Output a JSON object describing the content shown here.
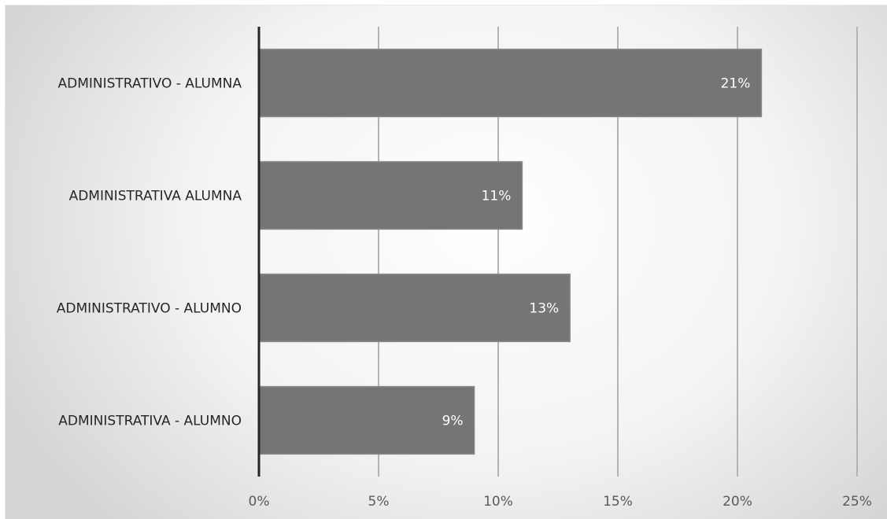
{
  "chart_data": {
    "type": "bar",
    "orientation": "horizontal",
    "categories": [
      "ADMINISTRATIVO - ALUMNA",
      "ADMINISTRATIVA ALUMNA",
      "ADMINISTRATIVO - ALUMNO",
      "ADMINISTRATIVA - ALUMNO"
    ],
    "values": [
      21,
      11,
      13,
      9
    ],
    "data_labels": [
      "21%",
      "11%",
      "13%",
      "9%"
    ],
    "x_ticks": [
      "0%",
      "5%",
      "10%",
      "15%",
      "20%",
      "25%"
    ],
    "xlim": [
      0,
      25
    ],
    "title": "",
    "xlabel": "",
    "ylabel": "",
    "grid": "vertical",
    "legend": "none",
    "colors": {
      "bar": "#757575",
      "bar_edge": "#8a8a8a",
      "gridline": "#b3b3b3",
      "axis": "#262626",
      "data_label": "#ffffff"
    }
  }
}
